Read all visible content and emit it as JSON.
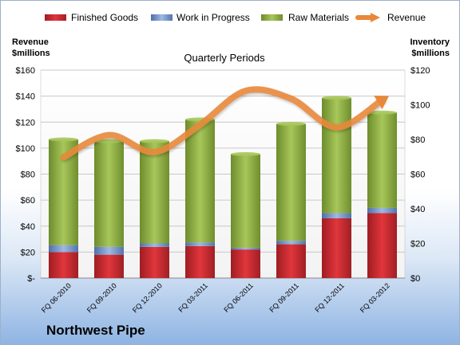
{
  "chart_data": {
    "type": "bar",
    "title": "Quarterly Periods",
    "company": "Northwest Pipe",
    "categories": [
      "FQ 06-2010",
      "FQ 09-2010",
      "FQ 12-2010",
      "FQ 03-2011",
      "FQ 06-2011",
      "FQ 09-2011",
      "FQ 12-2011",
      "FQ 03-2012"
    ],
    "left_axis": {
      "label_line1": "Revenue",
      "label_line2": "$millions",
      "ylim": [
        0,
        160
      ],
      "ticks": [
        0,
        20,
        40,
        60,
        80,
        100,
        120,
        140,
        160
      ],
      "tick_labels": [
        "$-",
        "$20",
        "$40",
        "$60",
        "$80",
        "$100",
        "$120",
        "$140",
        "$160"
      ]
    },
    "right_axis": {
      "label_line1": "Inventory",
      "label_line2": "$millions",
      "ylim": [
        0,
        120
      ],
      "ticks": [
        0,
        20,
        40,
        60,
        80,
        100,
        120
      ],
      "tick_labels": [
        "$0",
        "$20",
        "$40",
        "$60",
        "$80",
        "$100",
        "$120"
      ]
    },
    "stacked_series": [
      {
        "name": "Finished Goods",
        "color": "#c0282d",
        "values": [
          15,
          13.5,
          18,
          18.5,
          16.5,
          19.5,
          34.5,
          37.5
        ]
      },
      {
        "name": "Work in Progress",
        "color": "#6f8fc6",
        "values": [
          4,
          4.5,
          2,
          2,
          1,
          2,
          3,
          3
        ]
      },
      {
        "name": "Raw Materials",
        "color": "#8aac3f",
        "values": [
          61,
          61,
          59,
          71,
          54,
          67.5,
          66.5,
          55
        ]
      }
    ],
    "line_series": {
      "name": "Revenue",
      "color": "#e8883a",
      "axis": "left",
      "values": [
        93,
        110,
        97,
        118,
        144,
        138,
        116,
        137
      ]
    },
    "grid": true,
    "legend_position": "top"
  }
}
